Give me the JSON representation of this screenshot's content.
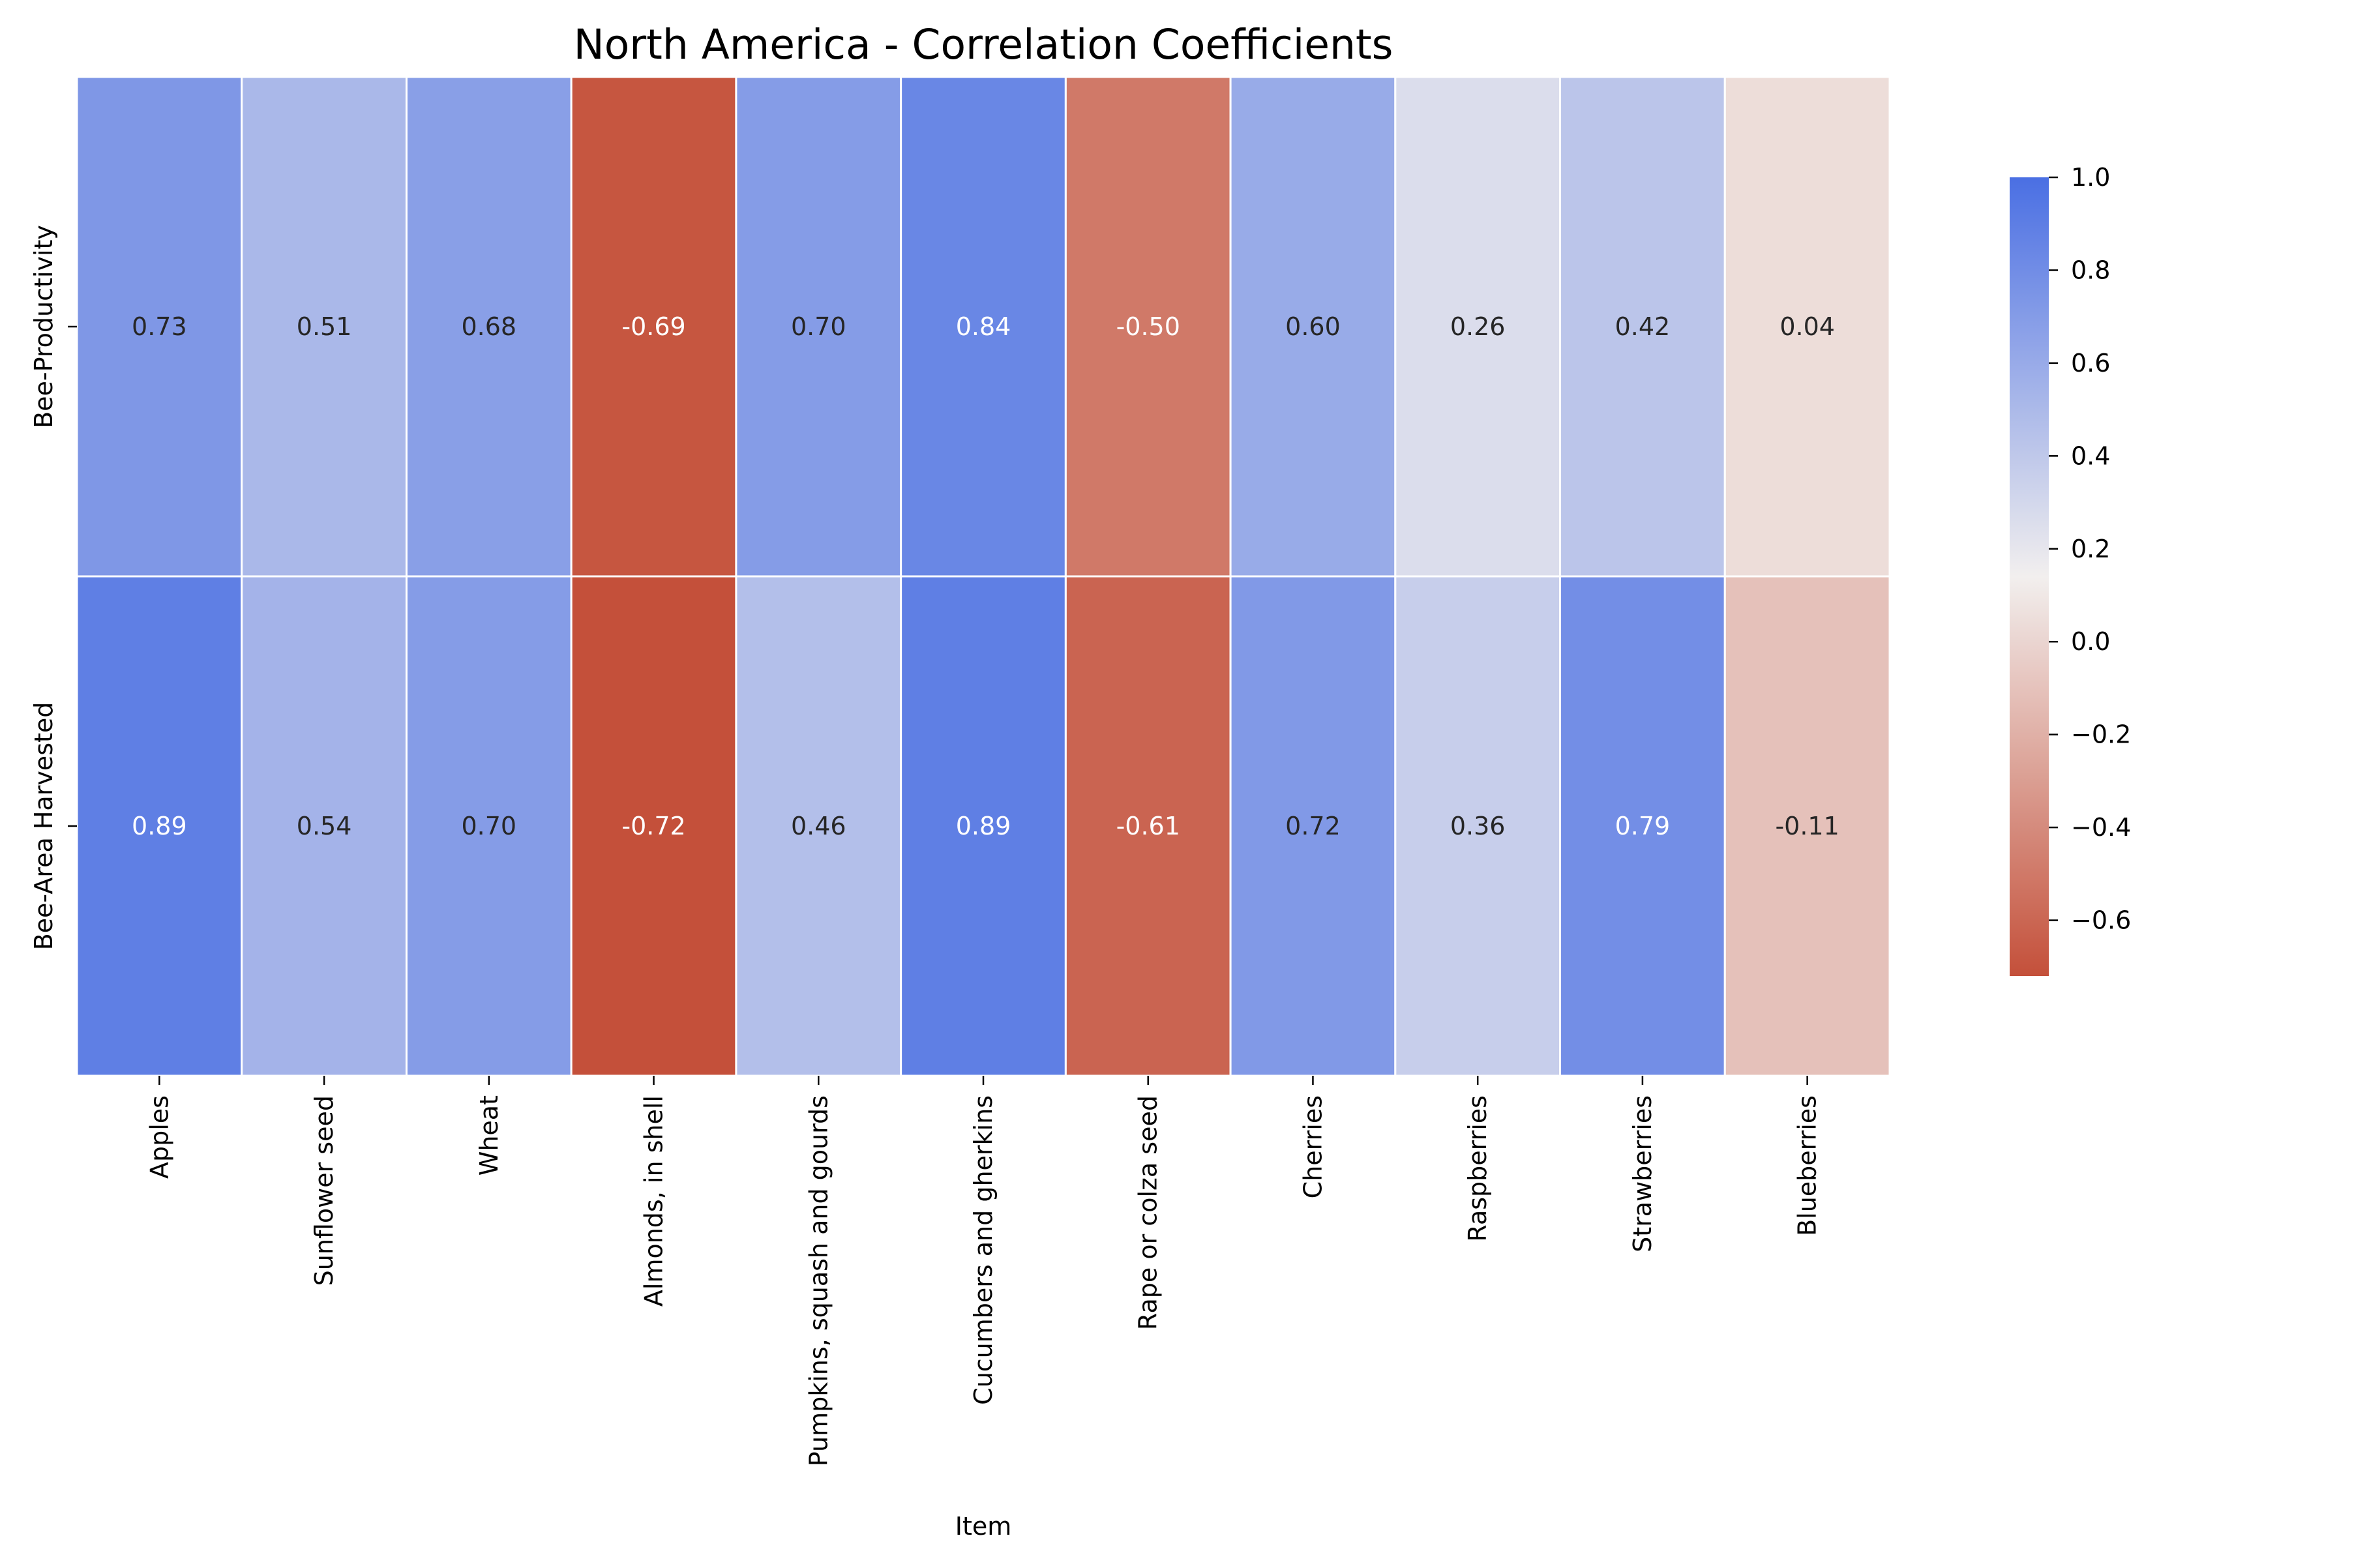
{
  "chart_data": {
    "type": "heatmap",
    "title": "North America - Correlation Coefficients",
    "xlabel": "Item",
    "ylabel": "",
    "rows": [
      "Bee-Productivity",
      "Bee-Area Harvested"
    ],
    "columns": [
      "Apples",
      "Sunflower seed",
      "Wheat",
      "Almonds, in shell",
      "Pumpkins, squash and gourds",
      "Cucumbers and gherkins",
      "Rape or colza seed",
      "Cherries",
      "Raspberries",
      "Strawberries",
      "Blueberries"
    ],
    "values": [
      [
        0.73,
        0.51,
        0.68,
        -0.69,
        0.7,
        0.84,
        -0.5,
        0.6,
        0.26,
        0.42,
        0.04
      ],
      [
        0.89,
        0.54,
        0.7,
        -0.72,
        0.46,
        0.89,
        -0.61,
        0.72,
        0.36,
        0.79,
        -0.11
      ]
    ],
    "value_labels": [
      [
        "0.73",
        "0.51",
        "0.68",
        "-0.69",
        "0.70",
        "0.84",
        "-0.50",
        "0.60",
        "0.26",
        "0.42",
        "0.04"
      ],
      [
        "0.89",
        "0.54",
        "0.70",
        "-0.72",
        "0.46",
        "0.89",
        "-0.61",
        "0.72",
        "0.36",
        "0.79",
        "-0.11"
      ]
    ],
    "colorbar": {
      "vmin": -0.72,
      "vmax": 1.0,
      "ticks": [
        1.0,
        0.8,
        0.6,
        0.4,
        0.2,
        0.0,
        -0.2,
        -0.4,
        -0.6
      ],
      "tick_labels": [
        "1.0",
        "0.8",
        "0.6",
        "0.4",
        "0.2",
        "0.0",
        "−0.2",
        "−0.4",
        "−0.6"
      ],
      "colormap": "diverging red-white-blue"
    },
    "colors": {
      "negative": "#c4503a",
      "neutral": "#f2efee",
      "positive": "#4a6fe3"
    }
  }
}
